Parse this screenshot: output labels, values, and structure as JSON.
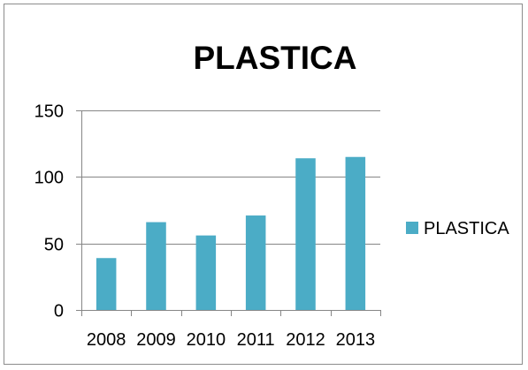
{
  "chart_data": {
    "type": "bar",
    "title": "PLASTICA",
    "xlabel": "",
    "ylabel": "",
    "categories": [
      "2008",
      "2009",
      "2010",
      "2011",
      "2012",
      "2013"
    ],
    "series": [
      {
        "name": "PLASTICA",
        "values": [
          39,
          66,
          56,
          71,
          114,
          115
        ],
        "color": "#4bacc6"
      }
    ],
    "ylim": [
      0,
      150
    ],
    "yticks": [
      0,
      50,
      100,
      150
    ],
    "grid": true,
    "legend": "right"
  }
}
